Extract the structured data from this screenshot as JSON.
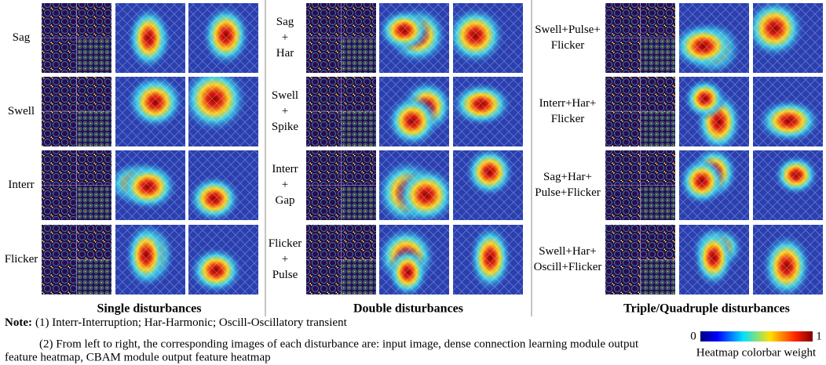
{
  "panels": [
    {
      "title": "Single disturbances",
      "rows": [
        [
          "Sag"
        ],
        [
          "Swell"
        ],
        [
          "Interr"
        ],
        [
          "Flicker"
        ]
      ]
    },
    {
      "title": "Double disturbances",
      "rows": [
        [
          "Sag",
          "+",
          "Har"
        ],
        [
          "Swell",
          "+",
          "Spike"
        ],
        [
          "Interr",
          "+",
          "Gap"
        ],
        [
          "Flicker",
          "+",
          "Pulse"
        ]
      ]
    },
    {
      "title": "Triple/Quadruple disturbances",
      "rows": [
        [
          "Swell+Pulse+",
          "Flicker"
        ],
        [
          "Interr+Har+",
          "Flicker"
        ],
        [
          "Sag+Har+",
          "Pulse+Flicker"
        ],
        [
          "Swell+Har+",
          "Oscill+Flicker"
        ]
      ]
    }
  ],
  "note": {
    "label": "Note:",
    "item1": "(1) Interr-Interruption; Har-Harmonic; Oscill-Oscillatory transient",
    "item2": [
      "(2) From left to right, the corresponding images of each disturbance are: input image, dense connection learning module output",
      "feature heatmap, CBAM module output feature heatmap"
    ]
  },
  "colorbar": {
    "min": 0,
    "max": 1,
    "label": "Heatmap colorbar weight"
  }
}
